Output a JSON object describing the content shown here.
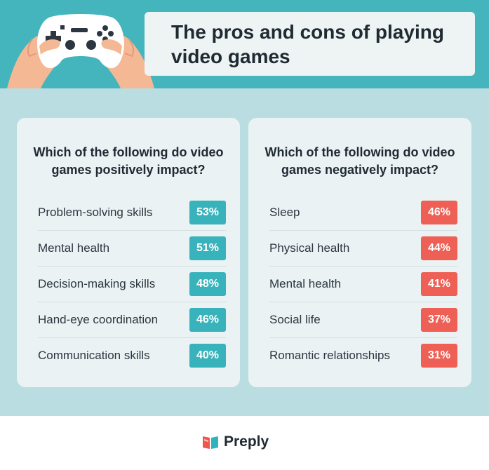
{
  "title": "The pros and cons of playing video games",
  "positive": {
    "question": "Which of the following do video games positively impact?",
    "items": [
      {
        "label": "Problem-solving skills",
        "value": "53%"
      },
      {
        "label": "Mental health",
        "value": "51%"
      },
      {
        "label": "Decision-making skills",
        "value": "48%"
      },
      {
        "label": "Hand-eye coordination",
        "value": "46%"
      },
      {
        "label": "Communication skills",
        "value": "40%"
      }
    ]
  },
  "negative": {
    "question": "Which of the following do video games negatively impact?",
    "items": [
      {
        "label": "Sleep",
        "value": "46%"
      },
      {
        "label": "Physical health",
        "value": "44%"
      },
      {
        "label": "Mental health",
        "value": "41%"
      },
      {
        "label": "Social life",
        "value": "37%"
      },
      {
        "label": "Romantic relationships",
        "value": "31%"
      }
    ]
  },
  "brand": {
    "name": "Preply"
  },
  "colors": {
    "header_bg": "#45b5bd",
    "main_bg": "#b9dde0",
    "card_bg": "#eaf2f3",
    "positive": "#38b3bb",
    "negative": "#ee6055"
  },
  "icons": {
    "header": "gamepad-hands-illustration",
    "brand": "preply-book-logo"
  }
}
